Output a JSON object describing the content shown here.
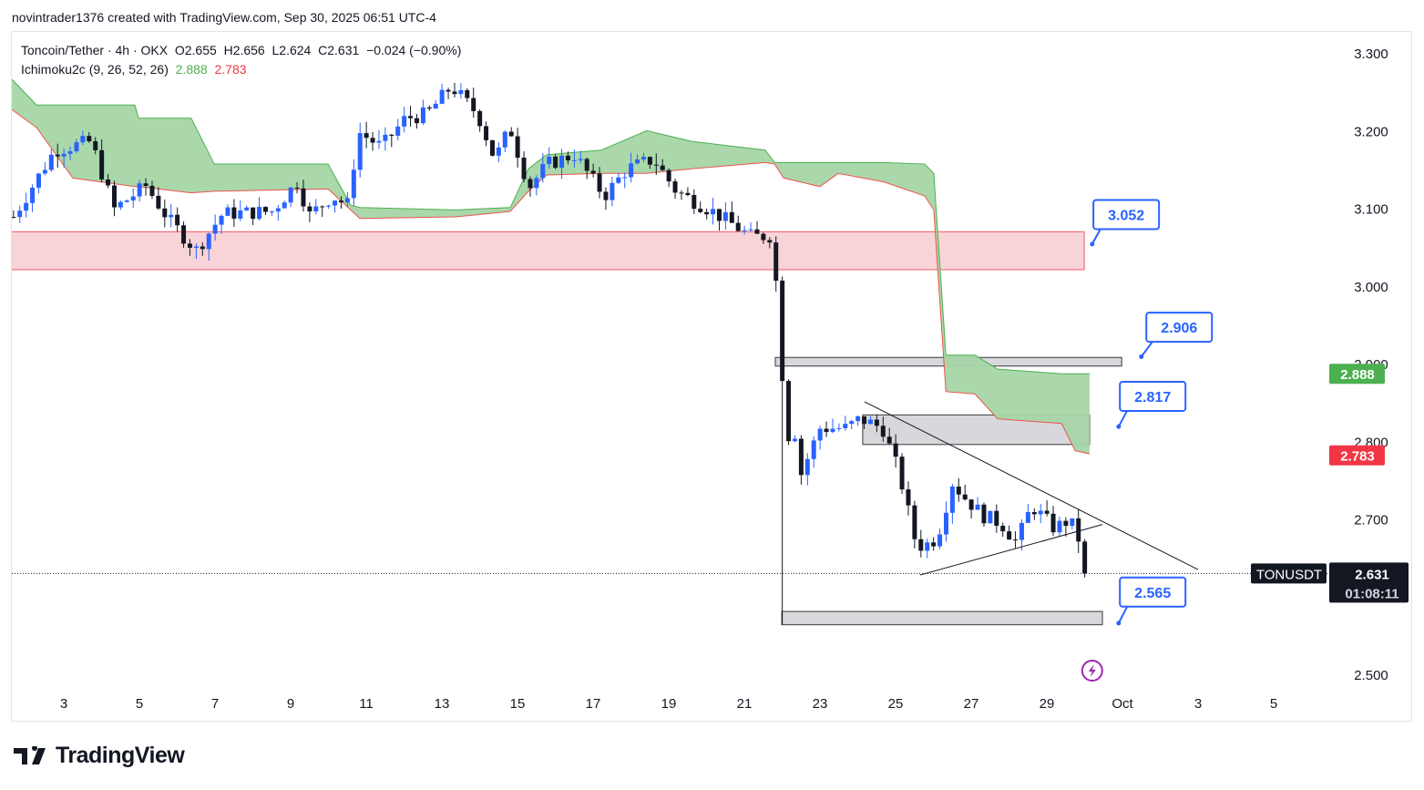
{
  "credit": "novintrader1376 created with TradingView.com, Sep 30, 2025 06:51 UTC-4",
  "legend": {
    "symbol": "Toncoin/Tether · 4h · OKX",
    "open": "O2.655",
    "high": "H2.656",
    "low": "L2.624",
    "close": "C2.631",
    "change": "−0.024 (−0.90%)",
    "indicator": "Ichimoku2c (9, 26, 52, 26)",
    "span_a": "2.888",
    "span_b": "2.783"
  },
  "logo": "TradingView",
  "chart_data": {
    "type": "candlestick",
    "symbol": "TONUSDT",
    "interval": "4h",
    "ylim": [
      2.45,
      3.33
    ],
    "y_ticks": [
      "3.300",
      "3.200",
      "3.100",
      "3.000",
      "2.900",
      "2.800",
      "2.700",
      "2.500"
    ],
    "x_ticks": [
      {
        "day": 3,
        "label": "3"
      },
      {
        "day": 5,
        "label": "5"
      },
      {
        "day": 7,
        "label": "7"
      },
      {
        "day": 9,
        "label": "9"
      },
      {
        "day": 11,
        "label": "11"
      },
      {
        "day": 13,
        "label": "13"
      },
      {
        "day": 15,
        "label": "15"
      },
      {
        "day": 17,
        "label": "17"
      },
      {
        "day": 19,
        "label": "19"
      },
      {
        "day": 21,
        "label": "21"
      },
      {
        "day": 23,
        "label": "23"
      },
      {
        "day": 25,
        "label": "25"
      },
      {
        "day": 27,
        "label": "27"
      },
      {
        "day": 29,
        "label": "29"
      },
      {
        "day": 31,
        "label": "Oct"
      },
      {
        "day": 33,
        "label": "3"
      },
      {
        "day": 35,
        "label": "5"
      }
    ],
    "price_path": [
      [
        1.67,
        3.09
      ],
      [
        2.76,
        3.176
      ],
      [
        3.72,
        3.187
      ],
      [
        4.33,
        3.1
      ],
      [
        5.17,
        3.13
      ],
      [
        5.77,
        3.087
      ],
      [
        6.5,
        3.047
      ],
      [
        7.2,
        3.094
      ],
      [
        8.5,
        3.097
      ],
      [
        9.27,
        3.14
      ],
      [
        9.4,
        3.088
      ],
      [
        10.1,
        3.117
      ],
      [
        10.5,
        3.105
      ],
      [
        10.8,
        3.199
      ],
      [
        11.4,
        3.18
      ],
      [
        12.04,
        3.217
      ],
      [
        12.6,
        3.222
      ],
      [
        13.25,
        3.258
      ],
      [
        13.95,
        3.222
      ],
      [
        14.4,
        3.164
      ],
      [
        14.8,
        3.205
      ],
      [
        15.3,
        3.128
      ],
      [
        15.8,
        3.158
      ],
      [
        16.5,
        3.17
      ],
      [
        17.3,
        3.117
      ],
      [
        17.9,
        3.152
      ],
      [
        18.6,
        3.164
      ],
      [
        19.2,
        3.123
      ],
      [
        20.1,
        3.099
      ],
      [
        21.2,
        3.064
      ],
      [
        21.7,
        3.066
      ],
      [
        21.9,
        2.98
      ],
      [
        22.1,
        2.8
      ],
      [
        22.3,
        2.824
      ],
      [
        22.5,
        2.759
      ],
      [
        23.0,
        2.818
      ],
      [
        23.7,
        2.818
      ],
      [
        24.06,
        2.83
      ],
      [
        24.66,
        2.818
      ],
      [
        25.1,
        2.759
      ],
      [
        25.5,
        2.677
      ],
      [
        25.7,
        2.665
      ],
      [
        26.1,
        2.677
      ],
      [
        26.5,
        2.748
      ],
      [
        26.8,
        2.73
      ],
      [
        27.3,
        2.706
      ],
      [
        27.8,
        2.695
      ],
      [
        28.2,
        2.671
      ],
      [
        28.6,
        2.718
      ],
      [
        29.2,
        2.689
      ],
      [
        29.6,
        2.7
      ],
      [
        29.99,
        2.66
      ],
      [
        30.16,
        2.631
      ]
    ],
    "ichimoku_cloud": [
      [
        1.63,
        3.267,
        3.228
      ],
      [
        2.28,
        3.234,
        3.205
      ],
      [
        3.24,
        3.234,
        3.14
      ],
      [
        4.88,
        3.234,
        3.129
      ],
      [
        4.98,
        3.217,
        3.129
      ],
      [
        6.37,
        3.217,
        3.121
      ],
      [
        6.98,
        3.158,
        3.123
      ],
      [
        9.99,
        3.158,
        3.126
      ],
      [
        10.59,
        3.105,
        3.099
      ],
      [
        10.83,
        3.102,
        3.088
      ],
      [
        13.36,
        3.099,
        3.09
      ],
      [
        14.81,
        3.102,
        3.097
      ],
      [
        15.29,
        3.152,
        3.123
      ],
      [
        15.77,
        3.17,
        3.144
      ],
      [
        17.22,
        3.176,
        3.146
      ],
      [
        18.42,
        3.201,
        3.146
      ],
      [
        19.63,
        3.187,
        3.152
      ],
      [
        21.55,
        3.176,
        3.16
      ],
      [
        21.8,
        3.16,
        3.158
      ],
      [
        22.04,
        3.16,
        3.14
      ],
      [
        23.0,
        3.16,
        3.129
      ],
      [
        23.48,
        3.16,
        3.146
      ],
      [
        24.69,
        3.16,
        3.135
      ],
      [
        25.77,
        3.158,
        3.117
      ],
      [
        26.01,
        3.146,
        3.099
      ],
      [
        26.33,
        2.912,
        2.865
      ],
      [
        27.1,
        2.912,
        2.862
      ],
      [
        27.7,
        2.894,
        2.83
      ],
      [
        29.39,
        2.888,
        2.824
      ],
      [
        29.75,
        2.888,
        2.789
      ],
      [
        30.13,
        2.888,
        2.785
      ]
    ],
    "zones": [
      {
        "name": "resistance-zone",
        "from": 1.6,
        "to": 29.99,
        "top": 3.071,
        "bottom": 3.022,
        "color": "#f8d4d8",
        "border": "#f23645"
      },
      {
        "name": "zone-2906",
        "from": 21.82,
        "to": 30.98,
        "top": 2.909,
        "bottom": 2.898,
        "color": "#d8d8dc",
        "border": "#555"
      },
      {
        "name": "zone-2817",
        "from": 24.13,
        "to": 30.13,
        "top": 2.835,
        "bottom": 2.797,
        "color": "#d8d8dc",
        "border": "#555"
      },
      {
        "name": "zone-2565",
        "from": 21.99,
        "to": 30.47,
        "top": 2.582,
        "bottom": 2.565,
        "color": "#d8d8dc",
        "border": "#555"
      }
    ],
    "trendlines": [
      [
        [
          24.18,
          2.852
        ],
        [
          33.0,
          2.636
        ]
      ],
      [
        [
          25.65,
          2.629
        ],
        [
          30.47,
          2.694
        ]
      ]
    ],
    "callouts": [
      {
        "label": "3.052",
        "day": 31.1,
        "price": 3.093,
        "anchor_day": 30.2,
        "anchor_price": 3.055
      },
      {
        "label": "2.906",
        "day": 32.5,
        "price": 2.948,
        "anchor_day": 31.5,
        "anchor_price": 2.91
      },
      {
        "label": "2.817",
        "day": 31.8,
        "price": 2.859,
        "anchor_day": 30.9,
        "anchor_price": 2.82
      },
      {
        "label": "2.565",
        "day": 31.8,
        "price": 2.607,
        "anchor_day": 30.9,
        "anchor_price": 2.567
      }
    ],
    "last_price": "2.631",
    "countdown": "01:08:11",
    "span_a_label": "2.888",
    "span_b_label": "2.783",
    "colors": {
      "up": "#2962ff",
      "down": "#131722",
      "cloud": "#a5d6a7",
      "span_a": "#4caf50",
      "span_b": "#ef5350",
      "callout": "#2962ff"
    }
  }
}
